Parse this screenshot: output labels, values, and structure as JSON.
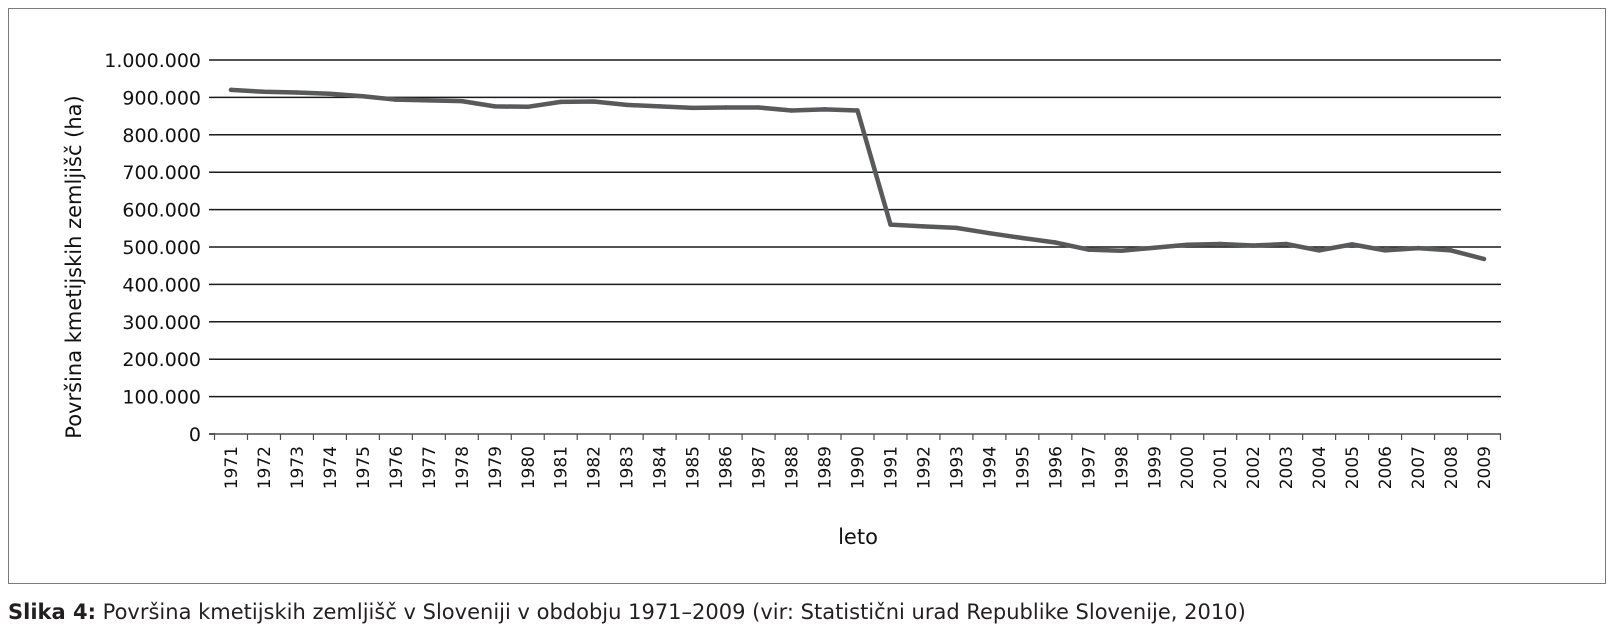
{
  "chart_data": {
    "type": "line",
    "title": "",
    "xlabel": "leto",
    "ylabel": "Površina kmetijskih zemljišč (ha)",
    "ylim": [
      0,
      1000000
    ],
    "y_ticks": [
      "0",
      "100.000",
      "200.000",
      "300.000",
      "400.000",
      "500.000",
      "600.000",
      "700.000",
      "800.000",
      "900.000",
      "1.000.000"
    ],
    "grid": true,
    "legend": "none",
    "line_color": "#58595b",
    "x": [
      1971,
      1972,
      1973,
      1974,
      1975,
      1976,
      1977,
      1978,
      1979,
      1980,
      1981,
      1982,
      1983,
      1984,
      1985,
      1986,
      1987,
      1988,
      1989,
      1990,
      1991,
      1992,
      1993,
      1994,
      1995,
      1996,
      1997,
      1998,
      1999,
      2000,
      2001,
      2002,
      2003,
      2004,
      2005,
      2006,
      2007,
      2008,
      2009
    ],
    "series": [
      {
        "values": [
          920000,
          915000,
          913000,
          910000,
          903000,
          894000,
          892000,
          890000,
          876000,
          875000,
          888000,
          889000,
          880000,
          876000,
          872000,
          873000,
          873000,
          865000,
          868000,
          865000,
          560000,
          555000,
          551000,
          537000,
          524000,
          512000,
          493000,
          490000,
          498000,
          506000,
          508000,
          504000,
          508000,
          491000,
          507000,
          491000,
          497000,
          491000,
          468000
        ]
      }
    ]
  },
  "caption": {
    "label": "Slika 4:",
    "text": " Površina kmetijskih zemljišč v Sloveniji v obdobju 1971–2009 (vir: Statistični urad Republike Slovenije, 2010)"
  }
}
